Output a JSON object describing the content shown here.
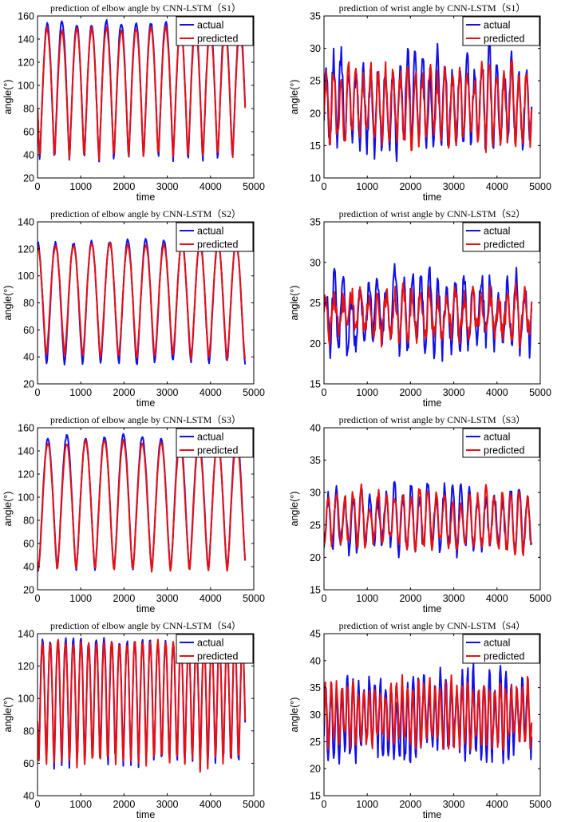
{
  "figure": {
    "series_names": [
      "actual",
      "predicted"
    ],
    "colors": {
      "actual": "#1010e8",
      "predicted": "#e81010"
    },
    "x_axis_ticks": [
      0,
      1000,
      2000,
      3000,
      4000,
      5000
    ]
  },
  "chart_data": [
    {
      "type": "line",
      "title": "prediction of elbow angle by CNN-LSTM（S1）",
      "xlabel": "time",
      "ylabel": "angle(°)",
      "xlim": [
        0,
        5000
      ],
      "ylim": [
        20,
        160
      ],
      "yticks": [
        20,
        40,
        60,
        80,
        100,
        120,
        140,
        160
      ],
      "legend_position": "top-right",
      "signal": {
        "n_points": 4800,
        "cycles": 14,
        "start_phase": 0.85,
        "sharpness": 1.7,
        "noise": 1.5,
        "seed": 11
      },
      "series": [
        {
          "name": "actual",
          "low": 35,
          "high": 154,
          "peak_var": 3,
          "trough_var": 2
        },
        {
          "name": "predicted",
          "low": 37,
          "high": 149,
          "peak_var": 2,
          "trough_var": 1.5
        }
      ]
    },
    {
      "type": "line",
      "title": "prediction of wrist angle by CNN-LSTM（S1）",
      "xlabel": "time",
      "ylabel": "angle(°)",
      "xlim": [
        0,
        5000
      ],
      "ylim": [
        10,
        35
      ],
      "yticks": [
        10,
        15,
        20,
        25,
        30,
        35
      ],
      "legend_position": "top-right",
      "signal": {
        "n_points": 4800,
        "cycles": 28,
        "start_phase": 0.2,
        "sharpness": 1.2,
        "noise": 1.6,
        "seed": 23
      },
      "series": [
        {
          "name": "actual",
          "low": 15,
          "high": 28,
          "peak_var": 3,
          "trough_var": 1.5
        },
        {
          "name": "predicted",
          "low": 16,
          "high": 26,
          "peak_var": 1.5,
          "trough_var": 1
        }
      ]
    },
    {
      "type": "line",
      "title": "prediction of elbow angle by CNN-LSTM（S2）",
      "xlabel": "time",
      "ylabel": "angle(°)",
      "xlim": [
        0,
        5000
      ],
      "ylim": [
        20,
        140
      ],
      "yticks": [
        20,
        40,
        60,
        80,
        100,
        120,
        140
      ],
      "legend_position": "top-right",
      "signal": {
        "n_points": 4800,
        "cycles": 11.5,
        "start_phase": 0.5,
        "sharpness": 1.4,
        "noise": 1.2,
        "seed": 37
      },
      "series": [
        {
          "name": "actual",
          "low": 35,
          "high": 126,
          "peak_var": 2,
          "trough_var": 1.5
        },
        {
          "name": "predicted",
          "low": 40,
          "high": 123,
          "peak_var": 1.5,
          "trough_var": 2
        }
      ]
    },
    {
      "type": "line",
      "title": "prediction of wrist angle by CNN-LSTM（S2）",
      "xlabel": "time",
      "ylabel": "angle(°)",
      "xlim": [
        0,
        5000
      ],
      "ylim": [
        15,
        35
      ],
      "yticks": [
        15,
        20,
        25,
        30,
        35
      ],
      "legend_position": "top-right",
      "signal": {
        "n_points": 4800,
        "cycles": 24,
        "start_phase": 0.3,
        "sharpness": 1.1,
        "noise": 1.3,
        "seed": 41
      },
      "series": [
        {
          "name": "actual",
          "low": 20,
          "high": 27,
          "peak_var": 2,
          "trough_var": 1.5
        },
        {
          "name": "predicted",
          "low": 21,
          "high": 26,
          "peak_var": 1,
          "trough_var": 0.8
        }
      ]
    },
    {
      "type": "line",
      "title": "prediction of elbow angle by CNN-LSTM（S3）",
      "xlabel": "time",
      "ylabel": "angle(°)",
      "xlim": [
        0,
        5000
      ],
      "ylim": [
        20,
        160
      ],
      "yticks": [
        20,
        40,
        60,
        80,
        100,
        120,
        140,
        160
      ],
      "legend_position": "top-right",
      "signal": {
        "n_points": 4800,
        "cycles": 11,
        "start_phase": 0.95,
        "sharpness": 1.4,
        "noise": 1.2,
        "seed": 53
      },
      "series": [
        {
          "name": "actual",
          "low": 38,
          "high": 152,
          "peak_var": 3,
          "trough_var": 2
        },
        {
          "name": "predicted",
          "low": 37,
          "high": 148,
          "peak_var": 2,
          "trough_var": 1.5
        }
      ]
    },
    {
      "type": "line",
      "title": "prediction of wrist angle by CNN-LSTM（S3）",
      "xlabel": "time",
      "ylabel": "angle(°)",
      "xlim": [
        0,
        5000
      ],
      "ylim": [
        15,
        40
      ],
      "yticks": [
        15,
        20,
        25,
        30,
        35,
        40
      ],
      "legend_position": "top-right",
      "signal": {
        "n_points": 4800,
        "cycles": 25,
        "start_phase": 0.0,
        "sharpness": 1.0,
        "noise": 1.0,
        "seed": 67
      },
      "series": [
        {
          "name": "actual",
          "low": 22,
          "high": 30,
          "peak_var": 1.5,
          "trough_var": 1.2
        },
        {
          "name": "predicted",
          "low": 22,
          "high": 29.5,
          "peak_var": 1.2,
          "trough_var": 1
        }
      ]
    },
    {
      "type": "line",
      "title": "prediction of elbow angle by CNN-LSTM（S4）",
      "xlabel": "time",
      "ylabel": "angle(°)",
      "xlim": [
        0,
        5000
      ],
      "ylim": [
        40,
        140
      ],
      "yticks": [
        40,
        60,
        80,
        100,
        120,
        140
      ],
      "legend_position": "top-right",
      "signal": {
        "n_points": 4800,
        "cycles": 27,
        "start_phase": 0.85,
        "sharpness": 1.5,
        "noise": 1.5,
        "seed": 79
      },
      "series": [
        {
          "name": "actual",
          "low": 60,
          "high": 136,
          "peak_var": 2,
          "trough_var": 3
        },
        {
          "name": "predicted",
          "low": 59,
          "high": 135,
          "peak_var": 1.5,
          "trough_var": 3
        }
      ]
    },
    {
      "type": "line",
      "title": "prediction of wrist angle by CNN-LSTM（S4）",
      "xlabel": "time",
      "ylabel": "angle(°)",
      "xlim": [
        0,
        5000
      ],
      "ylim": [
        15,
        45
      ],
      "yticks": [
        15,
        20,
        25,
        30,
        35,
        40,
        45
      ],
      "legend_position": "top-right",
      "signal": {
        "n_points": 4800,
        "cycles": 38,
        "start_phase": 0.2,
        "sharpness": 1.0,
        "noise": 1.5,
        "seed": 97
      },
      "series": [
        {
          "name": "actual",
          "low": 24,
          "high": 36,
          "peak_var": 3,
          "trough_var": 3
        },
        {
          "name": "predicted",
          "low": 25,
          "high": 35.5,
          "peak_var": 1.2,
          "trough_var": 0.6
        }
      ]
    }
  ]
}
